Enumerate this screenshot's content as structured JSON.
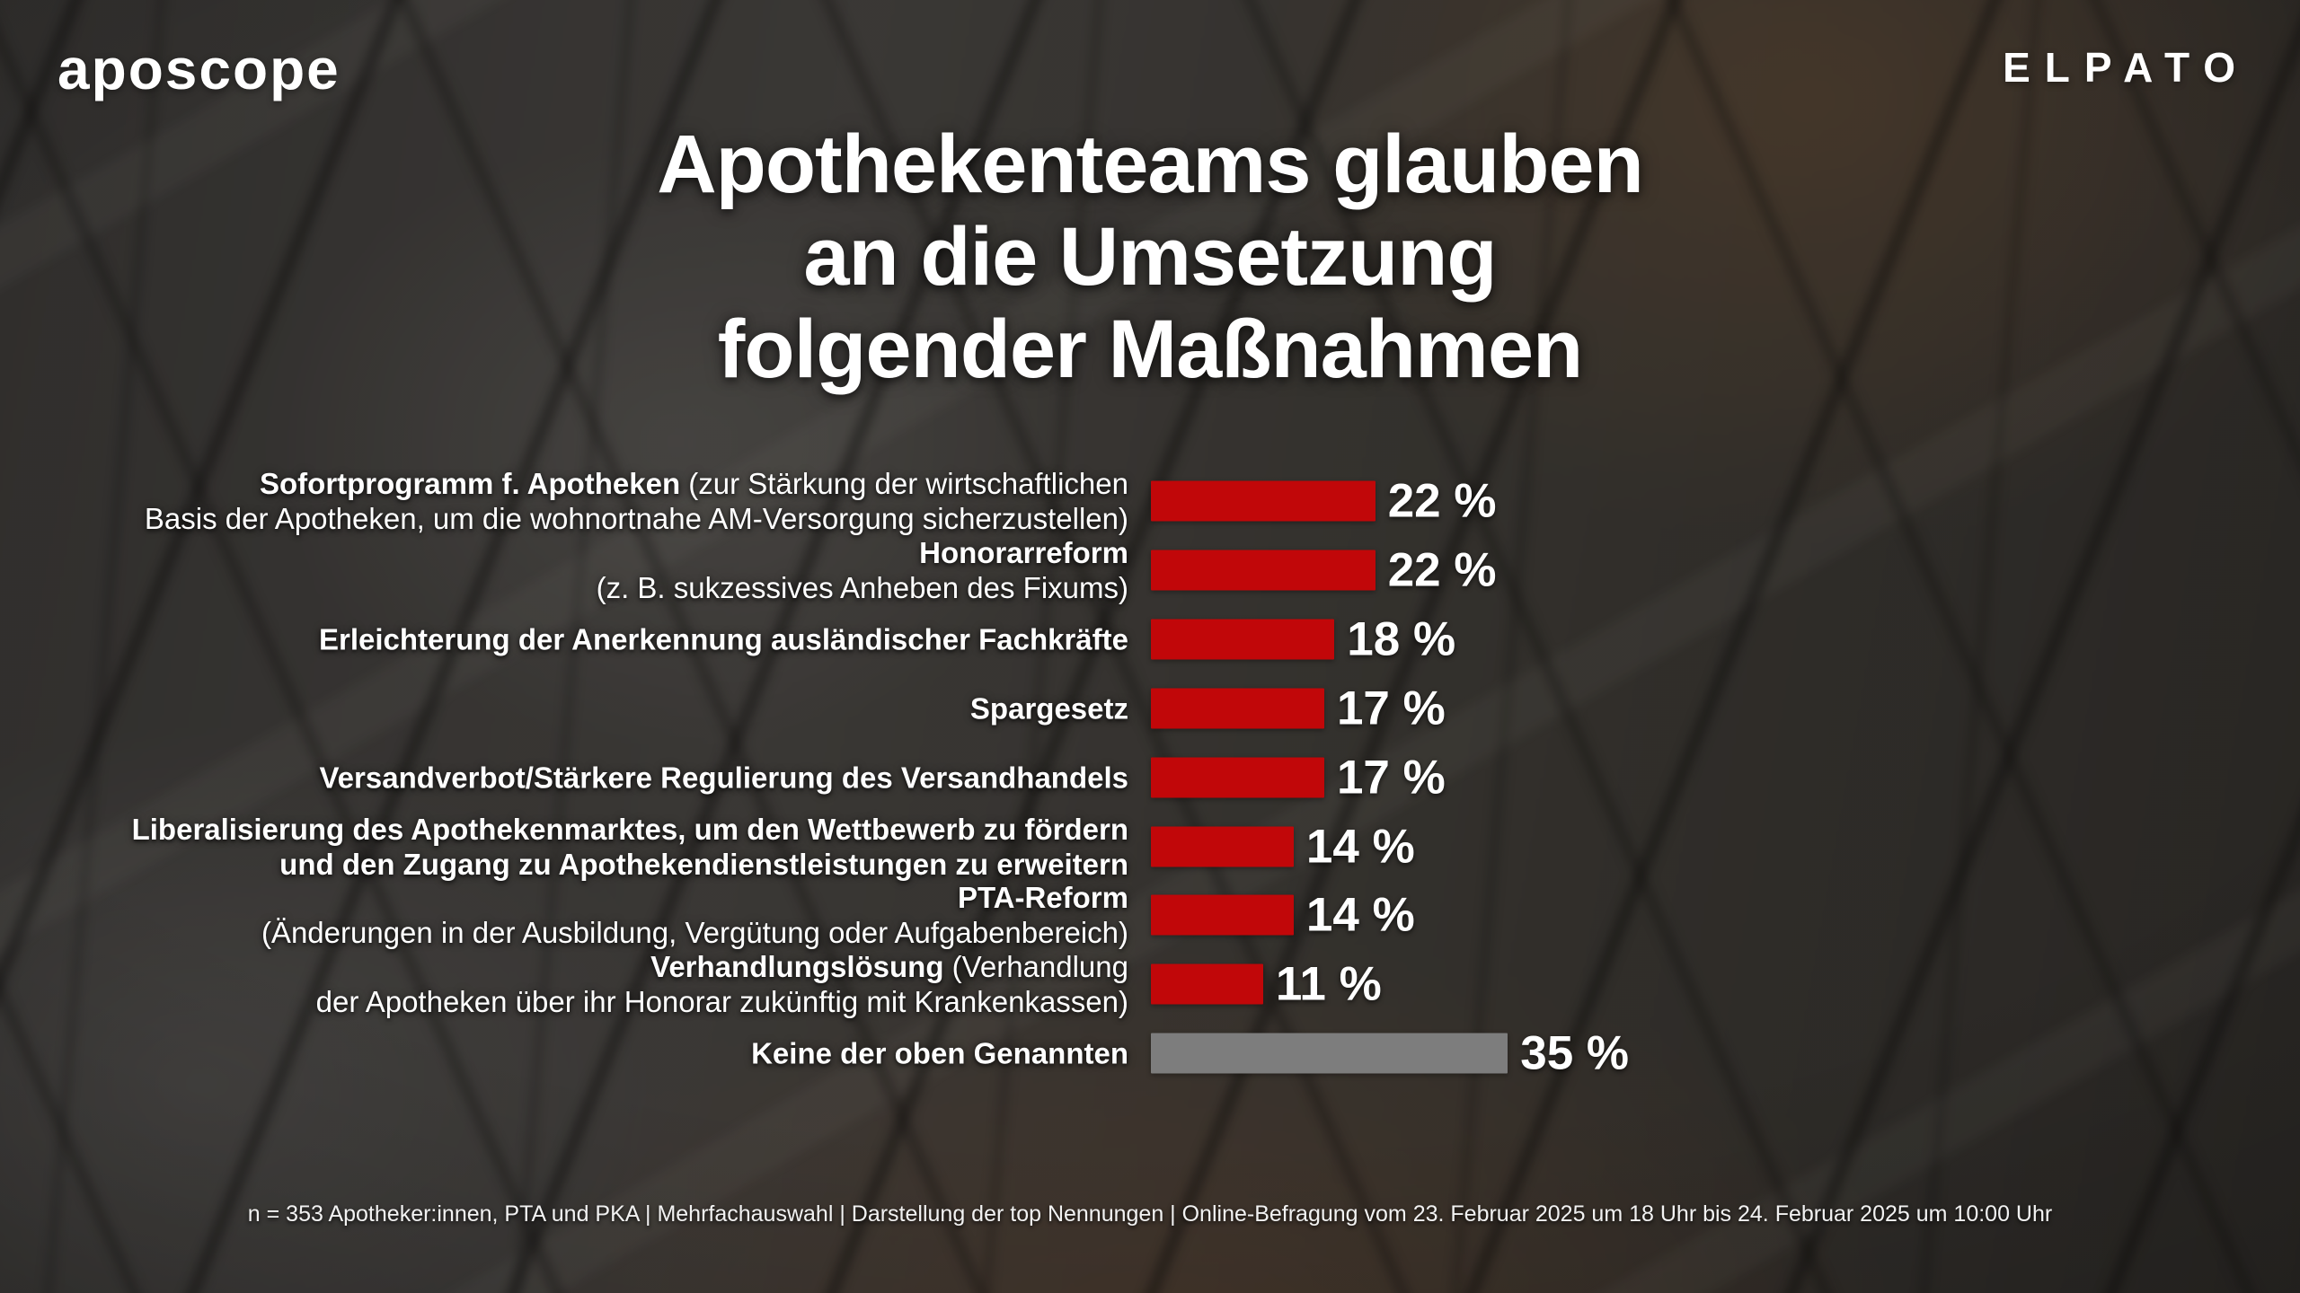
{
  "header": {
    "brand_left": "aposcope",
    "brand_right": "ELPATO"
  },
  "title": {
    "line1": "Apothekenteams glauben",
    "line2": "an die Umsetzung",
    "line3": "folgender Maßnahmen"
  },
  "chart_data": {
    "type": "bar",
    "orientation": "horizontal",
    "unit": "%",
    "xlim": [
      0,
      35
    ],
    "grid": false,
    "legend": "none",
    "bar_color": "#c10709",
    "muted_bar_color": "#7d7d7d",
    "categories": [
      "Sofortprogramm f. Apotheken (zur Stärkung der wirtschaftlichen Basis der Apotheken, um die wohnortnahe AM-Versorgung sicherzustellen)",
      "Honorarreform (z. B. sukzessives Anheben des Fixums)",
      "Erleichterung der Anerkennung ausländischer Fachkräfte",
      "Spargesetz",
      "Versandverbot/Stärkere Regulierung des Versandhandels",
      "Liberalisierung des Apothekenmarktes, um den Wettbewerb zu fördern und den Zugang zu Apothekendienstleistungen zu erweitern",
      "PTA-Reform (Änderungen in der Ausbildung, Vergütung oder Aufgabenbereich)",
      "Verhandlungslösung (Verhandlung der Apotheken über ihr Honorar zukünftig mit Krankenkassen)",
      "Keine der oben Genannten"
    ],
    "values": [
      22,
      22,
      18,
      17,
      17,
      14,
      14,
      11,
      35
    ],
    "value_labels": [
      "22 %",
      "22 %",
      "18 %",
      "17 %",
      "17 %",
      "14 %",
      "14 %",
      "11 %",
      "35 %"
    ],
    "items": [
      {
        "value": 22,
        "color": "red",
        "lines": [
          [
            {
              "t": "Sofortprogramm f. Apotheken",
              "b": true
            },
            {
              "t": " (zur Stärkung der wirtschaftlichen",
              "b": false
            }
          ],
          [
            {
              "t": "Basis der Apotheken, um die wohnortnahe AM-Versorgung sicherzustellen)",
              "b": false
            }
          ]
        ]
      },
      {
        "value": 22,
        "color": "red",
        "lines": [
          [
            {
              "t": "Honorarreform",
              "b": true
            }
          ],
          [
            {
              "t": "(z. B. sukzessives Anheben des Fixums)",
              "b": false
            }
          ]
        ]
      },
      {
        "value": 18,
        "color": "red",
        "lines": [
          [
            {
              "t": "Erleichterung der Anerkennung ausländischer Fachkräfte",
              "b": true
            }
          ]
        ]
      },
      {
        "value": 17,
        "color": "red",
        "lines": [
          [
            {
              "t": "Spargesetz",
              "b": true
            }
          ]
        ]
      },
      {
        "value": 17,
        "color": "red",
        "lines": [
          [
            {
              "t": "Versandverbot/Stärkere Regulierung des Versandhandels",
              "b": true
            }
          ]
        ]
      },
      {
        "value": 14,
        "color": "red",
        "lines": [
          [
            {
              "t": "Liberalisierung des Apothekenmarktes, um den Wettbewerb zu fördern",
              "b": true
            }
          ],
          [
            {
              "t": "und den Zugang zu Apothekendienstleistungen zu erweitern",
              "b": true
            }
          ]
        ]
      },
      {
        "value": 14,
        "color": "red",
        "lines": [
          [
            {
              "t": "PTA-Reform",
              "b": true
            }
          ],
          [
            {
              "t": "(Änderungen in der Ausbildung, Vergütung oder Aufgabenbereich)",
              "b": false
            }
          ]
        ]
      },
      {
        "value": 11,
        "color": "red",
        "lines": [
          [
            {
              "t": "Verhandlungslösung",
              "b": true
            },
            {
              "t": " (Verhandlung",
              "b": false
            }
          ],
          [
            {
              "t": "der Apotheken über ihr Honorar zukünftig mit Krankenkassen)",
              "b": false
            }
          ]
        ]
      },
      {
        "value": 35,
        "color": "gray",
        "lines": [
          [
            {
              "t": "Keine der oben Genannten",
              "b": true
            }
          ]
        ]
      }
    ]
  },
  "footer": {
    "note": "n = 353 Apotheker:innen, PTA und PKA | Mehrfachauswahl | Darstellung der top Nennungen | Online-Befragung vom 23. Februar 2025 um 18 Uhr bis 24. Februar 2025 um 10:00 Uhr"
  }
}
